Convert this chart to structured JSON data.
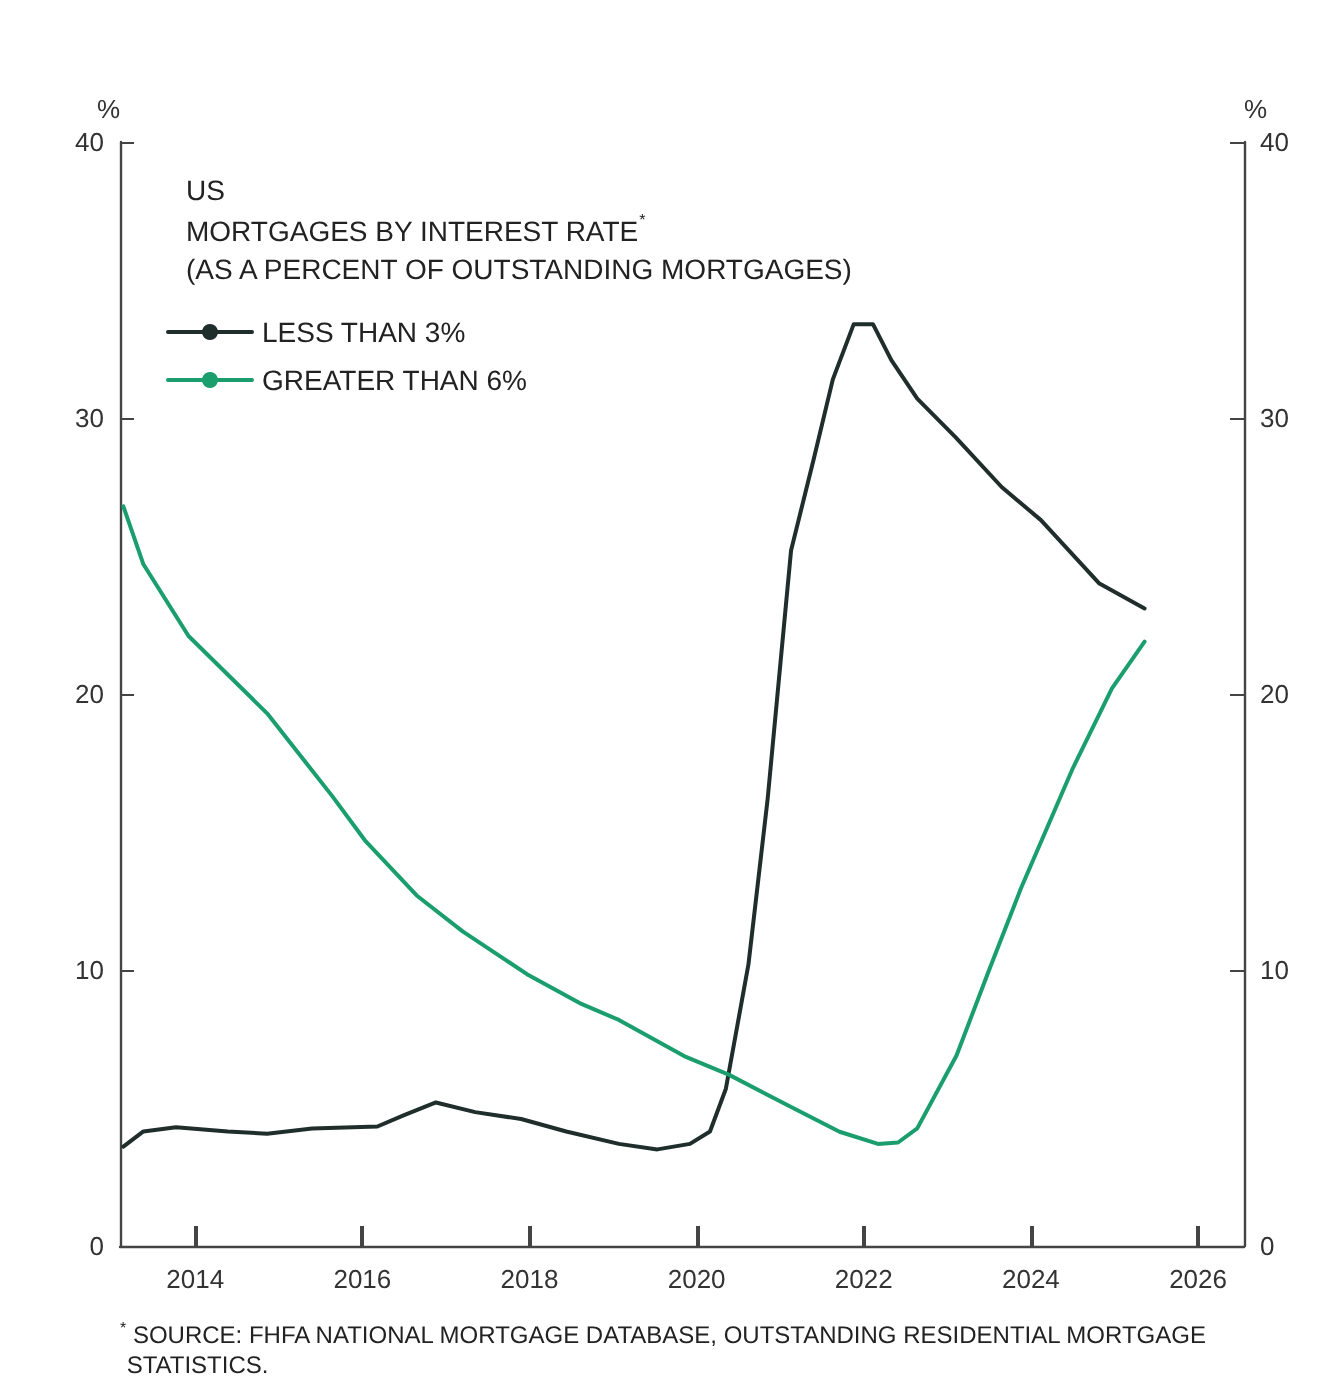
{
  "chart_data": {
    "type": "line",
    "title": "US",
    "subtitle": "MORTGAGES BY INTEREST RATE$^{*}$\n(AS A PERCENT OF OUTSTANDING MORTGAGES)",
    "ylabel": "%",
    "y2label": "%",
    "annotations": [
      "$^{*}$ SOURCE: FHFA NATIONAL MORTGAGE DATABASE, OUTSTANDING RESIDENTIAL MORTGAGE STATISTICS."
    ],
    "xlim": [
      2013.1,
      2026.55
    ],
    "xticks": [
      2014,
      2016,
      2018,
      2020,
      2022,
      2024,
      2026
    ],
    "ylim": [
      0,
      40
    ],
    "yticks": [
      0,
      10,
      20,
      30,
      40
    ],
    "y2lim": [
      0,
      40
    ],
    "y2ticks": [
      0,
      10,
      20,
      30,
      40
    ],
    "grid": false,
    "legend": "top left",
    "marker": "none",
    "line_style": "solid",
    "series": [
      {
        "name": "LESS THAN 3%",
        "color": "#1f2e2a",
        "x": [
          2013.14,
          2013.38,
          2013.77,
          2014.39,
          2014.86,
          2015.4,
          2016.18,
          2016.5,
          2016.88,
          2017.35,
          2017.9,
          2018.44,
          2019.07,
          2019.53,
          2019.92,
          2020.16,
          2020.35,
          2020.62,
          2020.85,
          2021.13,
          2021.4,
          2021.63,
          2021.88,
          2022.11,
          2022.33,
          2022.64,
          2023.1,
          2023.65,
          2024.12,
          2024.82,
          2025.36
        ],
        "values": [
          3.6,
          4.15,
          4.3,
          4.15,
          4.07,
          4.26,
          4.33,
          4.74,
          5.2,
          4.85,
          4.6,
          4.15,
          3.7,
          3.5,
          3.7,
          4.15,
          5.7,
          10.2,
          16.2,
          25.2,
          28.5,
          31.4,
          33.4,
          33.4,
          32.1,
          30.7,
          29.3,
          27.5,
          26.3,
          24.0,
          23.1
        ]
      },
      {
        "name": "GREATER THAN 6%",
        "color": "#1a9e6e",
        "x": [
          2013.14,
          2013.38,
          2013.92,
          2014.86,
          2015.64,
          2016.03,
          2016.65,
          2017.2,
          2017.97,
          2018.6,
          2019.07,
          2019.85,
          2020.39,
          2021.09,
          2021.71,
          2022.17,
          2022.41,
          2022.64,
          2023.11,
          2023.5,
          2023.88,
          2024.5,
          2024.97,
          2025.36
        ],
        "values": [
          26.8,
          24.7,
          22.1,
          19.3,
          16.3,
          14.7,
          12.7,
          11.4,
          9.85,
          8.8,
          8.19,
          6.88,
          6.2,
          5.1,
          4.14,
          3.7,
          3.75,
          4.26,
          6.9,
          10.0,
          12.95,
          17.3,
          20.2,
          21.9
        ]
      }
    ]
  }
}
